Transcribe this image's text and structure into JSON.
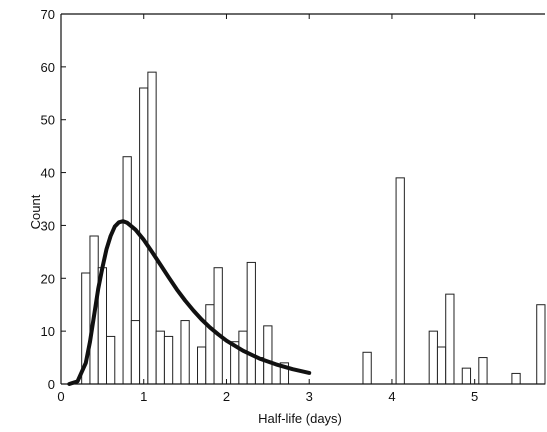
{
  "chart_data": {
    "type": "bar",
    "xlabel": "Half-life (days)",
    "ylabel": "Count",
    "xlim": [
      0,
      5.85
    ],
    "ylim": [
      0,
      70
    ],
    "grid": false,
    "bin_width": 0.1,
    "xticks": [
      0,
      1,
      2,
      3,
      4,
      5
    ],
    "yticks": [
      0,
      10,
      20,
      30,
      40,
      50,
      60,
      70
    ],
    "bars": [
      {
        "x": 0.3,
        "count": 21
      },
      {
        "x": 0.4,
        "count": 28
      },
      {
        "x": 0.5,
        "count": 22
      },
      {
        "x": 0.6,
        "count": 9
      },
      {
        "x": 0.8,
        "count": 43
      },
      {
        "x": 0.9,
        "count": 12
      },
      {
        "x": 1.0,
        "count": 56
      },
      {
        "x": 1.1,
        "count": 59
      },
      {
        "x": 1.2,
        "count": 10
      },
      {
        "x": 1.3,
        "count": 9
      },
      {
        "x": 1.5,
        "count": 12
      },
      {
        "x": 1.7,
        "count": 7
      },
      {
        "x": 1.8,
        "count": 15
      },
      {
        "x": 1.9,
        "count": 22
      },
      {
        "x": 2.1,
        "count": 8
      },
      {
        "x": 2.2,
        "count": 10
      },
      {
        "x": 2.3,
        "count": 23
      },
      {
        "x": 2.4,
        "count": 5
      },
      {
        "x": 2.5,
        "count": 11
      },
      {
        "x": 2.7,
        "count": 4
      },
      {
        "x": 3.7,
        "count": 6
      },
      {
        "x": 4.1,
        "count": 39
      },
      {
        "x": 4.5,
        "count": 10
      },
      {
        "x": 4.6,
        "count": 7
      },
      {
        "x": 4.7,
        "count": 17
      },
      {
        "x": 4.9,
        "count": 3
      },
      {
        "x": 5.1,
        "count": 5
      },
      {
        "x": 5.5,
        "count": 2
      },
      {
        "x": 5.8,
        "count": 15
      }
    ],
    "fit_curve": {
      "type": "line",
      "points": [
        [
          0.1,
          0
        ],
        [
          0.2,
          0.5
        ],
        [
          0.3,
          4
        ],
        [
          0.35,
          8
        ],
        [
          0.4,
          13
        ],
        [
          0.45,
          18
        ],
        [
          0.5,
          22
        ],
        [
          0.55,
          25.5
        ],
        [
          0.6,
          28
        ],
        [
          0.65,
          29.8
        ],
        [
          0.7,
          30.6
        ],
        [
          0.75,
          30.8
        ],
        [
          0.8,
          30.5
        ],
        [
          0.9,
          29.2
        ],
        [
          1.0,
          27.3
        ],
        [
          1.1,
          25.0
        ],
        [
          1.2,
          22.6
        ],
        [
          1.3,
          20.2
        ],
        [
          1.4,
          17.9
        ],
        [
          1.5,
          15.8
        ],
        [
          1.6,
          13.9
        ],
        [
          1.7,
          12.2
        ],
        [
          1.8,
          10.7
        ],
        [
          1.9,
          9.4
        ],
        [
          2.0,
          8.2
        ],
        [
          2.2,
          6.3
        ],
        [
          2.4,
          4.8
        ],
        [
          2.6,
          3.7
        ],
        [
          2.8,
          2.8
        ],
        [
          3.0,
          2.1
        ]
      ]
    }
  }
}
